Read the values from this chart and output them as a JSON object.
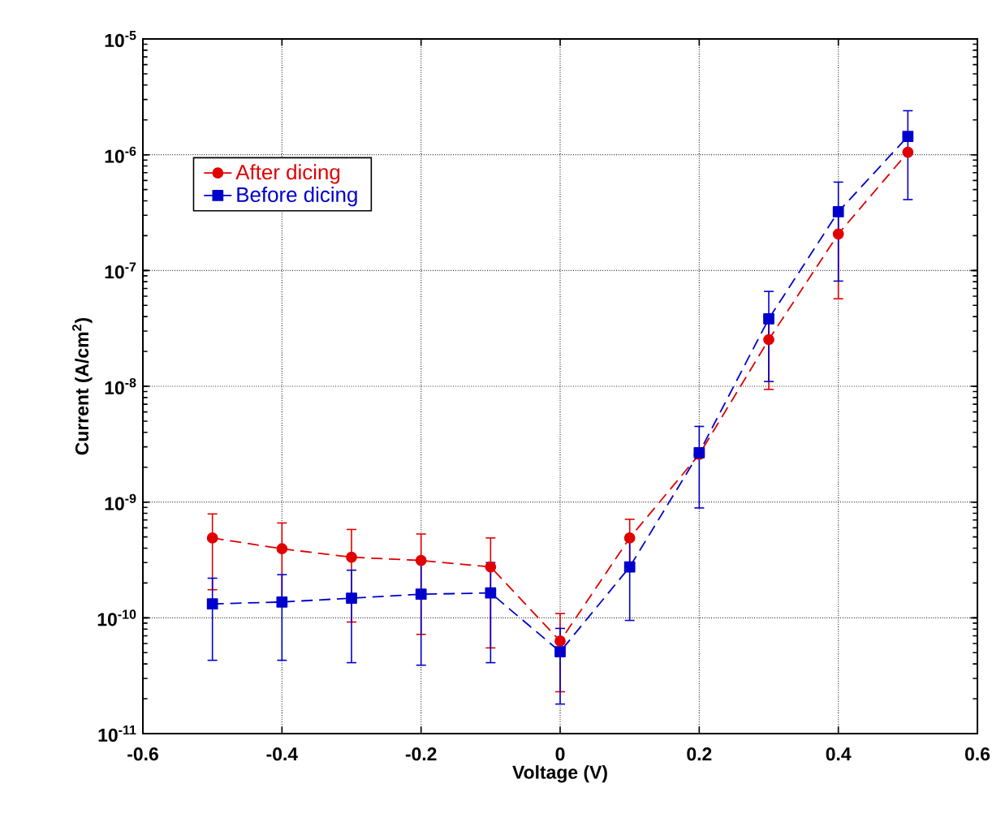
{
  "chart_data": {
    "type": "line",
    "xlabel": "Voltage (V)",
    "ylabel": "Current (A/cm$^{2}$)",
    "x": [
      -0.5,
      -0.4,
      -0.3,
      -0.2,
      -0.1,
      0,
      0.1,
      0.2,
      0.3,
      0.4,
      0.5
    ],
    "series": [
      {
        "name": "After dicing",
        "color": "#e00000",
        "marker": "circle",
        "values": [
          4.9e-10,
          3.95e-10,
          3.34e-10,
          3.13e-10,
          2.75e-10,
          6.3e-11,
          4.9e-10,
          2.58e-09,
          2.53e-08,
          2.07e-07,
          1.05e-06
        ],
        "errors": [
          [
            1.75e-10,
            7.9e-10
          ],
          [
            1.5e-10,
            6.6e-10
          ],
          [
            9.2e-11,
            5.8e-10
          ],
          [
            7.2e-11,
            5.3e-10
          ],
          [
            5.5e-11,
            4.9e-10
          ],
          [
            2.3e-11,
            1.09e-10
          ],
          [
            3e-10,
            7.1e-10
          ],
          null,
          [
            9.4e-09,
            4e-08
          ],
          [
            5.7e-08,
            3e-07
          ],
          null
        ]
      },
      {
        "name": "Before dicing",
        "color": "#0000cc",
        "marker": "square",
        "values": [
          1.32e-10,
          1.37e-10,
          1.48e-10,
          1.6e-10,
          1.64e-10,
          5.1e-11,
          2.75e-10,
          2.67e-09,
          3.83e-08,
          3.22e-07,
          1.44e-06
        ],
        "errors": [
          [
            4.3e-11,
            2.2e-10
          ],
          [
            4.3e-11,
            2.36e-10
          ],
          [
            4.1e-11,
            2.58e-10
          ],
          [
            3.9e-11,
            3.05e-10
          ],
          [
            4.1e-11,
            3e-10
          ],
          [
            1.8e-11,
            8.1e-11
          ],
          [
            9.5e-11,
            5e-10
          ],
          [
            8.9e-10,
            4.5e-09
          ],
          [
            1.1e-08,
            6.6e-08
          ],
          [
            8.1e-08,
            5.8e-07
          ],
          [
            4.1e-07,
            2.4e-06
          ]
        ]
      }
    ],
    "xlim": [
      -0.6,
      0.6
    ],
    "xticks": [
      -0.6,
      -0.4,
      -0.2,
      0,
      0.2,
      0.4,
      0.6
    ],
    "ylim": [
      1e-11,
      1e-05
    ],
    "yticks": [
      {
        "value": 1e-11,
        "label": "10$^{-11}$"
      },
      {
        "value": 1e-10,
        "label": "10$^{-10}$"
      },
      {
        "value": 1e-09,
        "label": "10$^{-9}$"
      },
      {
        "value": 1e-08,
        "label": "10$^{-8}$"
      },
      {
        "value": 1e-07,
        "label": "10$^{-7}$"
      },
      {
        "value": 1e-06,
        "label": "10$^{-6}$"
      },
      {
        "value": 1e-05,
        "label": "10$^{-5}$"
      }
    ],
    "log": "y",
    "grid": true,
    "legend": "top left",
    "line_style": "dashed"
  }
}
